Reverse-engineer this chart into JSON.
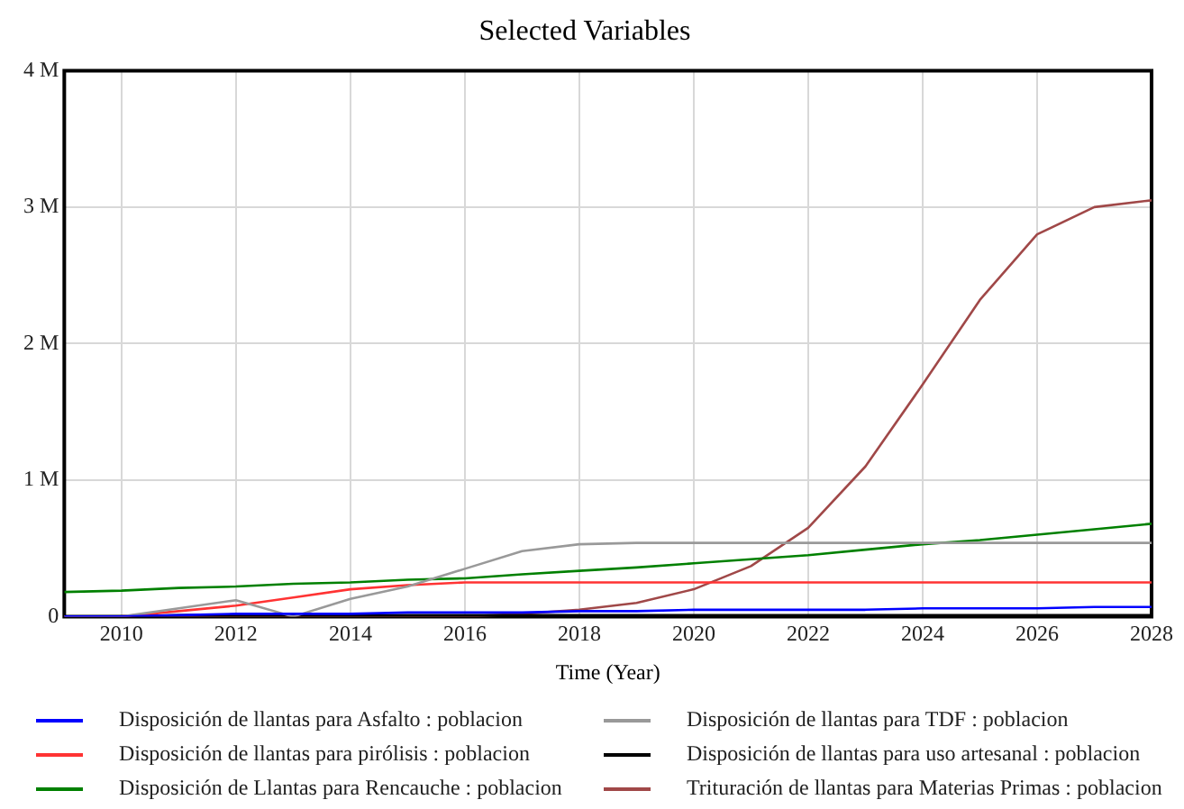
{
  "chart_data": {
    "type": "line",
    "title": "Selected Variables",
    "xlabel": "Time (Year)",
    "x": [
      2009,
      2010,
      2011,
      2012,
      2013,
      2014,
      2015,
      2016,
      2017,
      2018,
      2019,
      2020,
      2021,
      2022,
      2023,
      2024,
      2025,
      2026,
      2027,
      2028
    ],
    "xlim": [
      2009,
      2028
    ],
    "xticks": [
      2010,
      2012,
      2014,
      2016,
      2018,
      2020,
      2022,
      2024,
      2026,
      2028
    ],
    "ylim": [
      0,
      4000000
    ],
    "yticks": [
      {
        "value": 0,
        "label": "0"
      },
      {
        "value": 1000000,
        "label": "1 M"
      },
      {
        "value": 2000000,
        "label": "2 M"
      },
      {
        "value": 3000000,
        "label": "3 M"
      },
      {
        "value": 4000000,
        "label": "4 M"
      }
    ],
    "grid": true,
    "legend": "bottom",
    "marker": "none",
    "line_style": "solid",
    "series": [
      {
        "name": "Disposición de llantas para Asfalto : poblacion",
        "color": "#0000ff",
        "values": [
          0,
          0,
          10000,
          20000,
          20000,
          20000,
          30000,
          30000,
          30000,
          40000,
          40000,
          50000,
          50000,
          50000,
          50000,
          60000,
          60000,
          60000,
          70000,
          70000
        ]
      },
      {
        "name": "Disposición de llantas para TDF : poblacion",
        "color": "#999999",
        "values": [
          0,
          0,
          60000,
          120000,
          0,
          130000,
          220000,
          350000,
          480000,
          530000,
          540000,
          540000,
          540000,
          540000,
          540000,
          540000,
          540000,
          540000,
          540000,
          540000
        ]
      },
      {
        "name": "Disposición de llantas para pirólisis : poblacion",
        "color": "#ff3333",
        "values": [
          0,
          0,
          40000,
          80000,
          140000,
          200000,
          230000,
          250000,
          250000,
          250000,
          250000,
          250000,
          250000,
          250000,
          250000,
          250000,
          250000,
          250000,
          250000,
          250000
        ]
      },
      {
        "name": "Disposición de llantas para uso artesanal : poblacion",
        "color": "#000000",
        "values": [
          0,
          0,
          10000,
          10000,
          10000,
          10000,
          10000,
          10000,
          10000,
          10000,
          10000,
          10000,
          10000,
          10000,
          10000,
          10000,
          10000,
          10000,
          10000,
          10000
        ]
      },
      {
        "name": "Disposición de Llantas para Rencauche : poblacion",
        "color": "#008000",
        "values": [
          180000,
          190000,
          210000,
          220000,
          240000,
          250000,
          270000,
          280000,
          310000,
          335000,
          360000,
          390000,
          420000,
          450000,
          490000,
          530000,
          560000,
          600000,
          640000,
          680000
        ]
      },
      {
        "name": "Trituración de llantas para Materias Primas : poblacion",
        "color": "#a04848",
        "values": [
          0,
          0,
          0,
          0,
          0,
          0,
          0,
          0,
          20000,
          50000,
          100000,
          200000,
          370000,
          650000,
          1100000,
          1700000,
          2320000,
          2800000,
          3000000,
          3050000
        ]
      }
    ]
  }
}
